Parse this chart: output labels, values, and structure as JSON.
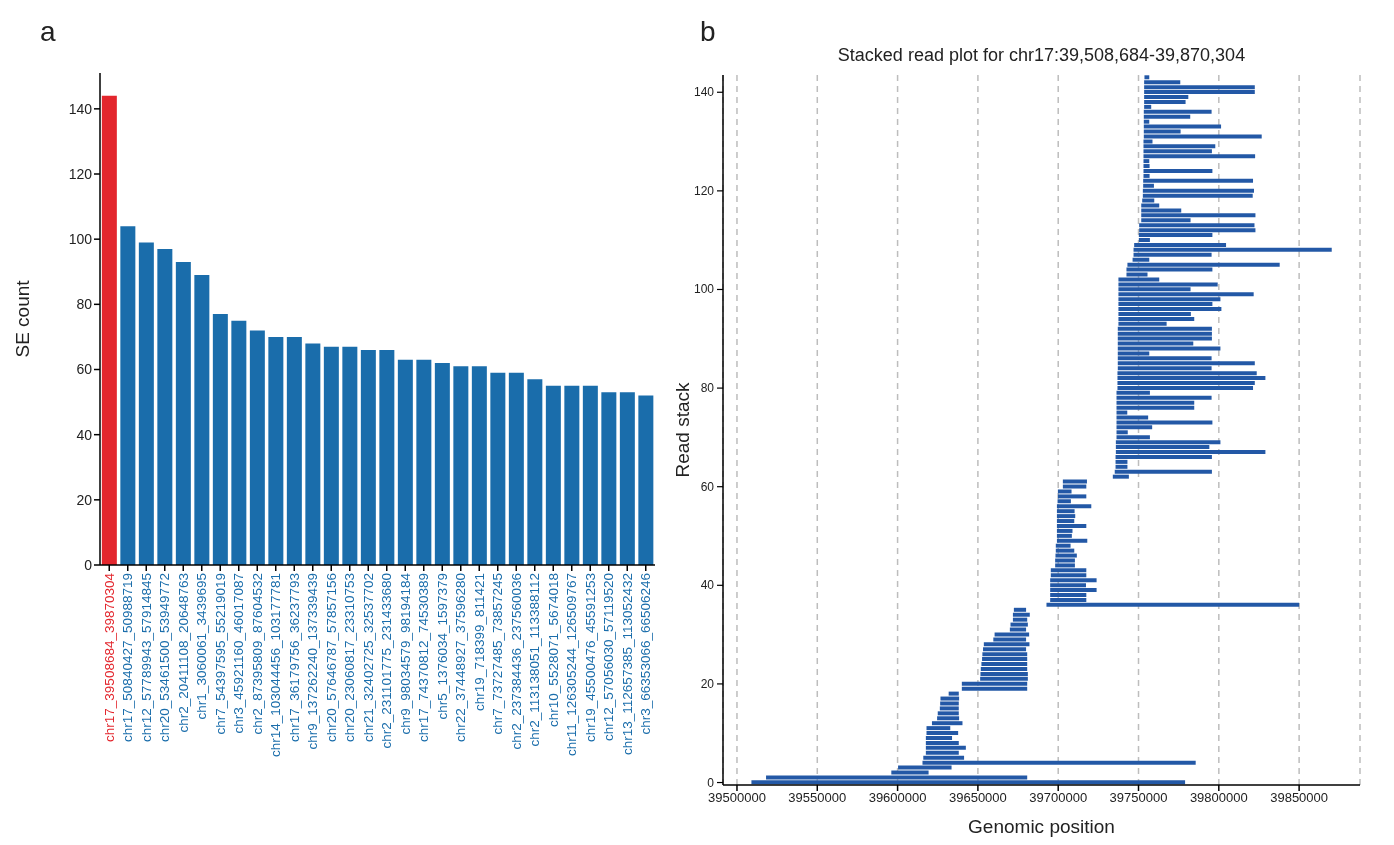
{
  "chart_data": [
    {
      "type": "bar",
      "annotations": [
        "a"
      ],
      "ylabel": "SE count",
      "categories": [
        "chr17_39508684_39870304",
        "chr17_50840427_50988719",
        "chr12_57789943_57914845",
        "chr20_53461500_53949772",
        "chr2_20411108_20648763",
        "chr1_3060061_3439695",
        "chr7_54397595_55219019",
        "chr3_45921160_46017087",
        "chr2_87395809_87604532",
        "chr14_103044456_103177781",
        "chr17_36179756_36237793",
        "chr9_137262240_137339439",
        "chr20_57646787_57857156",
        "chr20_23060817_23310753",
        "chr21_32402725_32537702",
        "chr2_231101775_231433680",
        "chr9_98034579_98194184",
        "chr17_74370812_74530389",
        "chr5_1376034_1597379",
        "chr22_37448927_37596280",
        "chr19_718399_811421",
        "chr7_73727485_73857245",
        "chr2_237384436_237560036",
        "chr2_113138051_113388112",
        "chr10_5528071_5674018",
        "chr11_126305244_126509767",
        "chr19_45500476_45591253",
        "chr12_57056030_57119520",
        "chr13_112657385_113052432",
        "chr3_66353066_66506246"
      ],
      "values": [
        144,
        104,
        99,
        97,
        93,
        89,
        77,
        75,
        72,
        70,
        70,
        68,
        67,
        67,
        66,
        66,
        63,
        63,
        62,
        61,
        61,
        59,
        59,
        57,
        55,
        55,
        55,
        53,
        53,
        52
      ],
      "colors": [
        "#e3262d",
        "#1a6dab",
        "#1a6dab",
        "#1a6dab",
        "#1a6dab",
        "#1a6dab",
        "#1a6dab",
        "#1a6dab",
        "#1a6dab",
        "#1a6dab",
        "#1a6dab",
        "#1a6dab",
        "#1a6dab",
        "#1a6dab",
        "#1a6dab",
        "#1a6dab",
        "#1a6dab",
        "#1a6dab",
        "#1a6dab",
        "#1a6dab",
        "#1a6dab",
        "#1a6dab",
        "#1a6dab",
        "#1a6dab",
        "#1a6dab",
        "#1a6dab",
        "#1a6dab",
        "#1a6dab",
        "#1a6dab",
        "#1a6dab"
      ],
      "ylim": [
        0,
        151
      ],
      "yticks": [
        0,
        20,
        40,
        60,
        80,
        100,
        120,
        140
      ]
    },
    {
      "type": "bar",
      "orientation": "horizontal",
      "annotations": [
        "b"
      ],
      "title": "Stacked read plot for chr17:39,508,684-39,870,304",
      "xlabel": "Genomic position",
      "ylabel": "Read stack",
      "color": "#2358a6",
      "grid": "x",
      "categories": [
        null,
        null,
        null,
        "140",
        null,
        null,
        null,
        null,
        null,
        null,
        null,
        null,
        null,
        null,
        null,
        null,
        null,
        null,
        null,
        null,
        null,
        null,
        null,
        "120",
        null,
        null,
        null,
        null,
        null,
        null,
        null,
        null,
        null,
        null,
        null,
        null,
        null,
        null,
        null,
        null,
        null,
        null,
        null,
        "100",
        null,
        null,
        null,
        null,
        null,
        null,
        null,
        null,
        null,
        null,
        null,
        null,
        null,
        null,
        null,
        null,
        null,
        null,
        null,
        "80",
        null,
        null,
        null,
        null,
        null,
        null,
        null,
        null,
        null,
        null,
        null,
        null,
        null,
        null,
        null,
        null,
        null,
        null,
        null,
        "60",
        null,
        null,
        null,
        null,
        null,
        null,
        null,
        null,
        null,
        null,
        null,
        null,
        null,
        null,
        null,
        null,
        null,
        null,
        null,
        "40",
        null,
        null,
        null,
        null,
        null,
        null,
        null,
        null,
        null,
        null,
        null,
        null,
        null,
        null,
        null,
        null,
        null,
        null,
        null,
        "20",
        null,
        null,
        null,
        null,
        null,
        null,
        null,
        null,
        null,
        null,
        null,
        null,
        null,
        null,
        null,
        null,
        null,
        null,
        null,
        "0"
      ],
      "base": [
        39753700,
        39753500,
        39753500,
        39753500,
        39753500,
        39753500,
        39753500,
        39753300,
        39753300,
        39753300,
        39753300,
        39753300,
        39753300,
        39753100,
        39753100,
        39753100,
        39753100,
        39753100,
        39753100,
        39753100,
        39753100,
        39752900,
        39752900,
        39752700,
        39752700,
        39752300,
        39751700,
        39751700,
        39751700,
        39751700,
        39750400,
        39750400,
        39750200,
        39750200,
        39747300,
        39746900,
        39746900,
        39746300,
        39743100,
        39742500,
        39742500,
        39737500,
        39737500,
        39737500,
        39737500,
        39737500,
        39737500,
        39737500,
        39737500,
        39737500,
        39737500,
        39737100,
        39737100,
        39737100,
        39737100,
        39737100,
        39737100,
        39737100,
        39737100,
        39737100,
        39736900,
        39736900,
        39736900,
        39736900,
        39736300,
        39736300,
        39736300,
        39736300,
        39736300,
        39736300,
        39736300,
        39736300,
        39736300,
        39736300,
        39735900,
        39735900,
        39735900,
        39735700,
        39735700,
        39735700,
        39735200,
        39734000,
        39702900,
        39702900,
        39699800,
        39699800,
        39699600,
        39699200,
        39699200,
        39699200,
        39699200,
        39699200,
        39699200,
        39699200,
        39699200,
        39698500,
        39698500,
        39698300,
        39698100,
        39698100,
        39695400,
        39695400,
        39695000,
        39695000,
        39695000,
        39695000,
        39695000,
        39692700,
        39672400,
        39671800,
        39671800,
        39670300,
        39669900,
        39660400,
        39659600,
        39653700,
        39653200,
        39652800,
        39652600,
        39652200,
        39651800,
        39651600,
        39651400,
        39640000,
        39640000,
        39631800,
        39626700,
        39626500,
        39626300,
        39625000,
        39624600,
        39621400,
        39618000,
        39618000,
        39617600,
        39617600,
        39617600,
        39617600,
        39616000,
        39615500,
        39600300,
        39596100,
        39518100,
        39509000
      ],
      "values": [
        3000,
        22500,
        68900,
        68900,
        27500,
        25800,
        4400,
        42200,
        28900,
        3400,
        48100,
        22900,
        73400,
        5600,
        44700,
        42600,
        69500,
        3600,
        3800,
        42900,
        3800,
        68400,
        6700,
        69200,
        68400,
        7500,
        11200,
        24900,
        71100,
        30700,
        71800,
        72400,
        45800,
        6900,
        57200,
        123400,
        48600,
        10400,
        94800,
        53500,
        13100,
        25400,
        61800,
        44900,
        84200,
        63500,
        58500,
        64100,
        45100,
        47200,
        30000,
        58600,
        58600,
        58600,
        47000,
        63900,
        19600,
        58400,
        85300,
        58400,
        86700,
        92100,
        85500,
        84400,
        20800,
        59200,
        48400,
        48400,
        6700,
        19700,
        59700,
        22200,
        7000,
        20800,
        65100,
        58200,
        93100,
        60000,
        7400,
        7400,
        60500,
        10000,
        15000,
        14600,
        8500,
        17700,
        8300,
        21400,
        11000,
        11400,
        10800,
        18300,
        9700,
        9300,
        18900,
        9200,
        11500,
        13300,
        12300,
        12300,
        22100,
        22100,
        28900,
        22300,
        28900,
        22500,
        22500,
        157300,
        7600,
        10500,
        8900,
        10800,
        10100,
        21500,
        20400,
        28400,
        26800,
        27900,
        28100,
        28500,
        28900,
        29500,
        29700,
        40700,
        40700,
        6300,
        11600,
        11600,
        11800,
        13100,
        13700,
        19000,
        14800,
        19700,
        16300,
        20500,
        24900,
        20500,
        25400,
        170100,
        33300,
        23200,
        162600,
        270000
      ],
      "xlim": [
        39491300,
        39887900
      ],
      "xticks": [
        39500000,
        39550000,
        39600000,
        39650000,
        39700000,
        39750000,
        39800000,
        39850000
      ]
    }
  ]
}
